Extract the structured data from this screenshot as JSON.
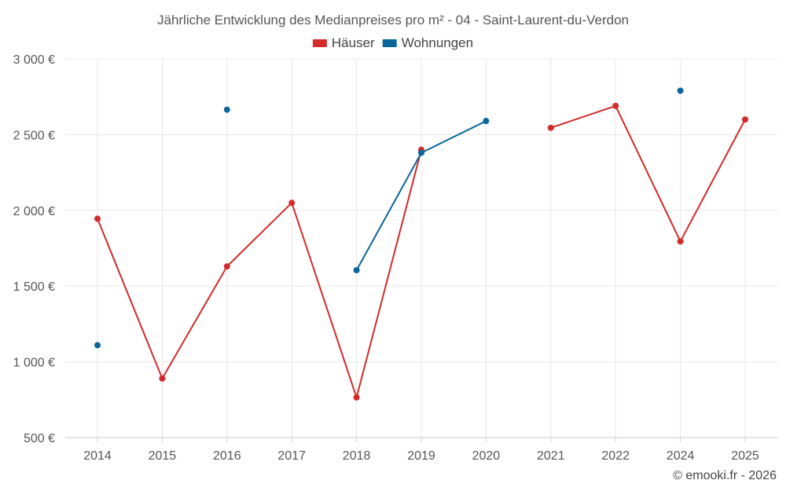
{
  "chart_data": {
    "type": "line",
    "title": "Jährliche Entwicklung des Medianpreises pro m² - 04 - Saint-Laurent-du-Verdon",
    "categories": [
      "2014",
      "2015",
      "2016",
      "2017",
      "2018",
      "2019",
      "2020",
      "2021",
      "2022",
      "2024",
      "2025"
    ],
    "ylim": [
      500,
      3000
    ],
    "yticks": [
      500,
      1000,
      1500,
      2000,
      2500,
      3000
    ],
    "ytick_labels": [
      "500 €",
      "1 000 €",
      "1 500 €",
      "2 000 €",
      "2 500 €",
      "3 000 €"
    ],
    "grid": true,
    "legend_position": "top-center",
    "series": [
      {
        "name": "Häuser",
        "color": "#d32a2a",
        "values": [
          1945,
          890,
          1630,
          2050,
          765,
          2400,
          null,
          2545,
          2690,
          1795,
          2600
        ]
      },
      {
        "name": "Wohnungen",
        "color": "#0a6699",
        "values": [
          1110,
          null,
          2665,
          null,
          1605,
          2380,
          2590,
          null,
          null,
          2790,
          null
        ]
      }
    ]
  },
  "credit": "© emooki.fr - 2026"
}
